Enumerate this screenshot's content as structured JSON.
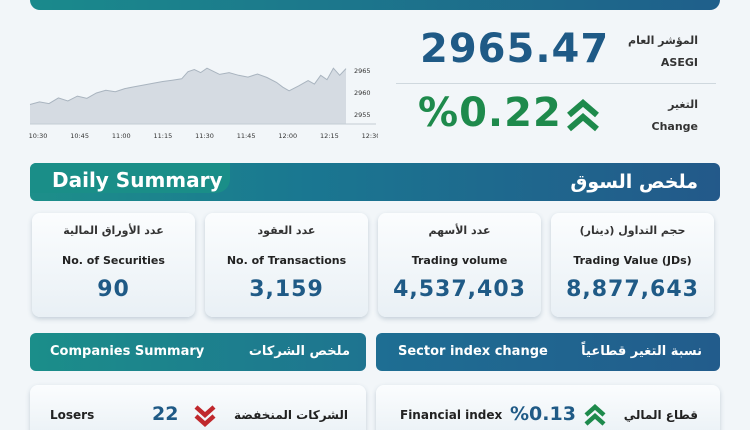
{
  "index": {
    "label_ar": "المؤشر العام",
    "label_en": "ASEGI",
    "value": "2965.47",
    "change_label_ar": "التغير",
    "change_label_en": "Change",
    "change_value": "%0.22",
    "change_direction": "up",
    "up_color": "#1e8a4c",
    "value_color": "#1f5a86"
  },
  "chart_data": {
    "type": "area",
    "x_ticks": [
      "10:30",
      "10:45",
      "11:00",
      "11:15",
      "11:30",
      "11:45",
      "12:00",
      "12:15",
      "12:30"
    ],
    "y_ticks": [
      "2965",
      "2960",
      "2955"
    ],
    "ylim": [
      2953,
      2967
    ],
    "grid": false,
    "series": [
      {
        "x": [
          0,
          0.03,
          0.06,
          0.09,
          0.12,
          0.15,
          0.18,
          0.21,
          0.24,
          0.27,
          0.3,
          0.33,
          0.36,
          0.39,
          0.42,
          0.45,
          0.48,
          0.5,
          0.52,
          0.54,
          0.56,
          0.58,
          0.6,
          0.63,
          0.66,
          0.69,
          0.72,
          0.75,
          0.78,
          0.8,
          0.82,
          0.85,
          0.88,
          0.9,
          0.92,
          0.94,
          0.96,
          0.98,
          1.0
        ],
        "values": [
          2957.4,
          2958.0,
          2957.6,
          2958.9,
          2958.2,
          2959.3,
          2958.8,
          2960.0,
          2960.6,
          2960.3,
          2961.0,
          2961.4,
          2961.8,
          2962.2,
          2962.6,
          2962.9,
          2963.2,
          2964.8,
          2965.3,
          2964.6,
          2965.6,
          2964.9,
          2964.2,
          2964.6,
          2964.0,
          2963.6,
          2964.3,
          2963.5,
          2962.4,
          2961.3,
          2960.5,
          2961.6,
          2962.8,
          2962.0,
          2964.0,
          2963.0,
          2965.6,
          2964.0,
          2965.5
        ]
      }
    ]
  },
  "daily": {
    "title_en": "Daily Summary",
    "title_ar": "ملخص السوق",
    "cards": [
      {
        "ar": "حجم التداول (دينار)",
        "en": "Trading Value (JDs)",
        "value": "8,877,643"
      },
      {
        "ar": "عدد الأسهم",
        "en": "Trading volume",
        "value": "4,537,403"
      },
      {
        "ar": "عدد العقود",
        "en": "No. of Transactions",
        "value": "3,159"
      },
      {
        "ar": "عدد الأوراق المالية",
        "en": "No. of Securities",
        "value": "90"
      }
    ]
  },
  "sector": {
    "title_en": "Sector index change",
    "title_ar": "نسبة التغير قطاعياً",
    "row": {
      "ar": "قطاع المالي",
      "en": "Financial index",
      "value": "%0.13",
      "direction": "up"
    }
  },
  "companies": {
    "title_en": "Companies Summary",
    "title_ar": "ملخص الشركات",
    "row": {
      "ar": "الشركات المنخفضة",
      "en": "Losers",
      "value": "22",
      "direction": "down",
      "down_color": "#c0282d"
    }
  }
}
